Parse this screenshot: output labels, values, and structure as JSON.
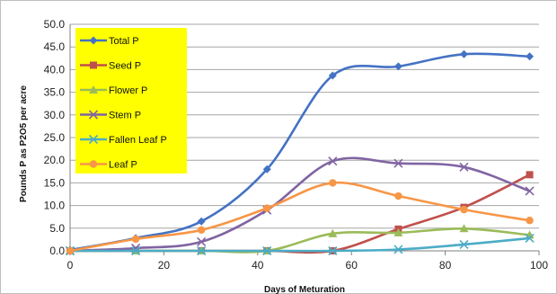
{
  "chart_data": {
    "type": "line",
    "title": "",
    "xlabel": "Days of Meturation",
    "ylabel": "Pounds P as  P2O5 per acre",
    "xlim": [
      0,
      100
    ],
    "ylim": [
      0,
      50
    ],
    "x_ticks": [
      "0",
      "20",
      "40",
      "60",
      "80",
      "100"
    ],
    "y_ticks": [
      "0.0",
      "5.0",
      "10.0",
      "15.0",
      "20.0",
      "25.0",
      "30.0",
      "35.0",
      "40.0",
      "45.0",
      "50.0"
    ],
    "grid": "horizontal",
    "legend_position": "top-left",
    "legend_background": "#ffff00",
    "series": [
      {
        "name": "Total P",
        "color": "#4472c4",
        "marker": "diamond",
        "x": [
          0,
          14,
          28,
          42,
          56,
          70,
          84,
          98
        ],
        "y": [
          0.2,
          2.8,
          6.5,
          18.0,
          38.7,
          40.7,
          43.4,
          42.9
        ]
      },
      {
        "name": "Seed P",
        "color": "#c0504d",
        "marker": "square",
        "x": [
          0,
          14,
          28,
          42,
          56,
          70,
          84,
          98
        ],
        "y": [
          0,
          0,
          0,
          0,
          0,
          4.8,
          9.6,
          16.8
        ]
      },
      {
        "name": "Flower P",
        "color": "#9bbb59",
        "marker": "triangle",
        "x": [
          0,
          14,
          28,
          42,
          56,
          70,
          84,
          98
        ],
        "y": [
          0,
          0,
          0,
          0,
          3.8,
          4.0,
          4.9,
          3.5
        ]
      },
      {
        "name": "Stem P",
        "color": "#8064a2",
        "marker": "x",
        "x": [
          0,
          14,
          28,
          42,
          56,
          70,
          84,
          98
        ],
        "y": [
          0,
          0.6,
          2.0,
          9.0,
          19.8,
          19.3,
          18.5,
          13.2
        ]
      },
      {
        "name": "Fallen Leaf P",
        "color": "#4bacc6",
        "marker": "x",
        "x": [
          0,
          14,
          28,
          42,
          56,
          70,
          84,
          98
        ],
        "y": [
          0,
          0,
          0,
          0,
          0,
          0.3,
          1.4,
          2.8
        ]
      },
      {
        "name": "Leaf P",
        "color": "#f79646",
        "marker": "circle",
        "x": [
          0,
          14,
          28,
          42,
          56,
          70,
          84,
          98
        ],
        "y": [
          0,
          2.6,
          4.6,
          9.4,
          15.0,
          12.1,
          9.1,
          6.7
        ]
      }
    ]
  }
}
